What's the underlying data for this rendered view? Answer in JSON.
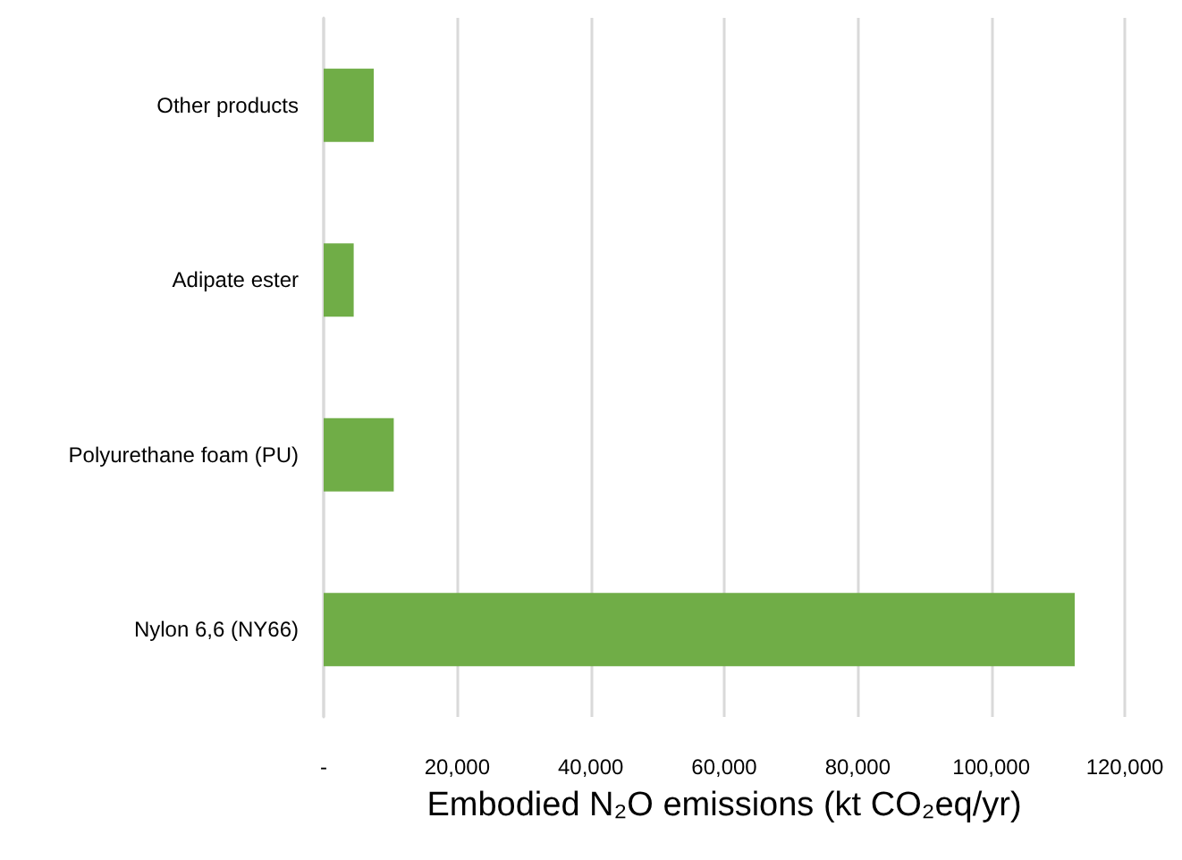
{
  "chart_data": {
    "type": "bar",
    "orientation": "horizontal",
    "xlabel": "Embodied N₂O emissions (kt CO₂eq/yr)",
    "categories": [
      "Other products",
      "Adipate ester",
      "Polyurethane foam (PU)",
      "Nylon 6,6 (NY66)"
    ],
    "values": [
      7500,
      4500,
      10500,
      112500
    ],
    "color": "#70ad47",
    "xlim": [
      0,
      120000
    ],
    "xticks": [
      {
        "value": 0,
        "label": "-"
      },
      {
        "value": 20000,
        "label": "20,000"
      },
      {
        "value": 40000,
        "label": "40,000"
      },
      {
        "value": 60000,
        "label": "60,000"
      },
      {
        "value": 80000,
        "label": "80,000"
      },
      {
        "value": 100000,
        "label": "100,000"
      },
      {
        "value": 120000,
        "label": "120,000"
      }
    ],
    "grid": "x"
  }
}
